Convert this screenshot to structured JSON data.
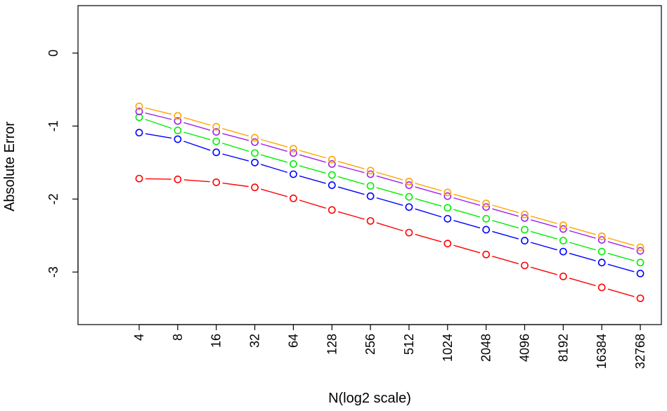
{
  "chart_data": {
    "type": "line",
    "xlabel": "N(log2 scale)",
    "ylabel": "Absolute Error",
    "x_scale": "log2",
    "categories": [
      "4",
      "8",
      "16",
      "32",
      "64",
      "128",
      "256",
      "512",
      "1024",
      "2048",
      "4096",
      "8192",
      "16384",
      "32768"
    ],
    "ylim": [
      -3.72,
      0.65
    ],
    "yticks": [
      "0",
      "-1",
      "-2",
      "-3"
    ],
    "grid": false,
    "markers": "open-circle",
    "line_style": "connected segments",
    "series": [
      {
        "color": "#ff0000",
        "values": [
          -1.72,
          -1.73,
          -1.77,
          -1.84,
          -1.99,
          -2.15,
          -2.3,
          -2.46,
          -2.61,
          -2.76,
          -2.91,
          -3.06,
          -3.21,
          -3.36
        ]
      },
      {
        "color": "#0000ff",
        "values": [
          -1.09,
          -1.18,
          -1.36,
          -1.5,
          -1.66,
          -1.81,
          -1.96,
          -2.11,
          -2.27,
          -2.42,
          -2.57,
          -2.72,
          -2.87,
          -3.02
        ]
      },
      {
        "color": "#00ee00",
        "values": [
          -0.88,
          -1.06,
          -1.21,
          -1.37,
          -1.52,
          -1.67,
          -1.82,
          -1.97,
          -2.12,
          -2.27,
          -2.42,
          -2.57,
          -2.72,
          -2.87
        ]
      },
      {
        "color": "#a020f0",
        "values": [
          -0.8,
          -0.93,
          -1.08,
          -1.22,
          -1.37,
          -1.52,
          -1.66,
          -1.81,
          -1.96,
          -2.11,
          -2.26,
          -2.41,
          -2.56,
          -2.71
        ]
      },
      {
        "color": "#ffa500",
        "values": [
          -0.73,
          -0.86,
          -1.01,
          -1.16,
          -1.31,
          -1.46,
          -1.61,
          -1.76,
          -1.91,
          -2.06,
          -2.21,
          -2.36,
          -2.51,
          -2.66
        ]
      }
    ]
  }
}
